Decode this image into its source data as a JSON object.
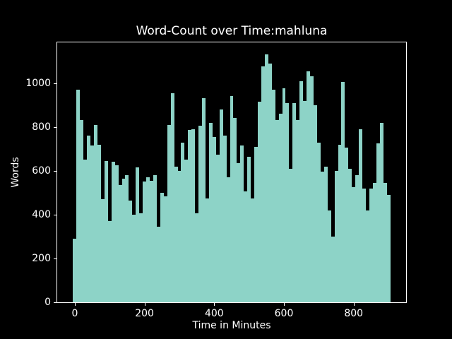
{
  "figure": {
    "background": "#000000",
    "foreground": "#ffffff"
  },
  "chart_data": {
    "type": "bar",
    "title": "Word-Count over Time:mahluna",
    "xlabel": "Time in Minutes",
    "ylabel": "Words",
    "bar_color": "#8dd3c7",
    "bar_width_x": 10,
    "xlim": [
      -50.5,
      950.5
    ],
    "ylim": [
      0,
      1186
    ],
    "xticks": [
      0,
      200,
      400,
      600,
      800
    ],
    "yticks": [
      0,
      200,
      400,
      600,
      800,
      1000
    ],
    "grid": false,
    "legend": null,
    "x": [
      0,
      10,
      20,
      30,
      40,
      50,
      60,
      70,
      80,
      90,
      100,
      110,
      120,
      130,
      140,
      150,
      160,
      170,
      180,
      190,
      200,
      210,
      220,
      230,
      240,
      250,
      260,
      270,
      280,
      290,
      300,
      310,
      320,
      330,
      340,
      350,
      360,
      370,
      380,
      390,
      400,
      410,
      420,
      430,
      440,
      450,
      460,
      470,
      480,
      490,
      500,
      510,
      520,
      530,
      540,
      550,
      560,
      570,
      580,
      590,
      600,
      610,
      620,
      630,
      640,
      650,
      660,
      670,
      680,
      690,
      700,
      710,
      720,
      730,
      740,
      750,
      760,
      770,
      780,
      790,
      800,
      810,
      820,
      830,
      840,
      850,
      860,
      870,
      880,
      890,
      900
    ],
    "values": [
      290,
      970,
      830,
      650,
      760,
      715,
      810,
      720,
      470,
      645,
      370,
      640,
      625,
      535,
      565,
      580,
      465,
      400,
      615,
      405,
      550,
      570,
      555,
      580,
      345,
      500,
      485,
      810,
      955,
      620,
      600,
      730,
      650,
      785,
      790,
      405,
      805,
      930,
      475,
      820,
      755,
      675,
      880,
      760,
      570,
      940,
      840,
      635,
      715,
      505,
      665,
      475,
      710,
      915,
      1075,
      1130,
      1090,
      970,
      830,
      860,
      975,
      910,
      610,
      910,
      830,
      1010,
      920,
      1055,
      1030,
      900,
      730,
      595,
      620,
      420,
      300,
      600,
      720,
      1005,
      705,
      610,
      525,
      580,
      790,
      520,
      420,
      520,
      545,
      725,
      820,
      545,
      490
    ]
  }
}
